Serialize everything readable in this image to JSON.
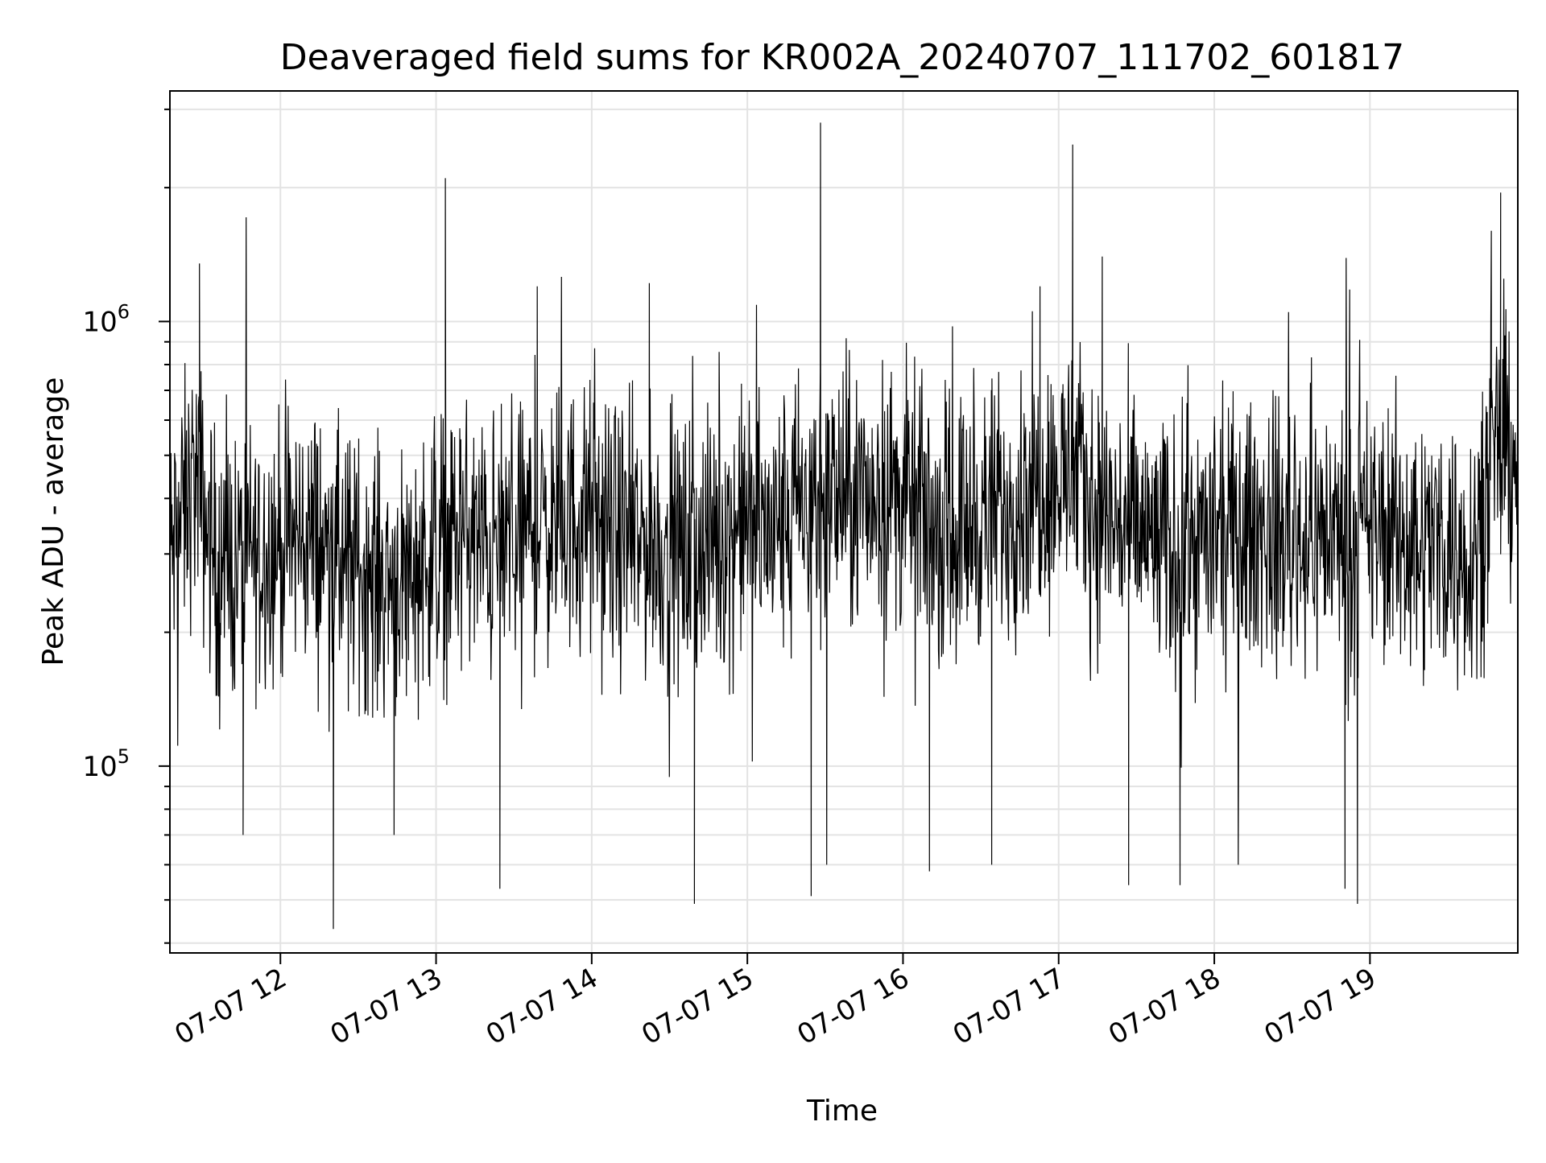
{
  "chart_data": {
    "type": "line",
    "title": "Deaveraged field sums for KR002A_20240707_111702_601817",
    "xlabel": "Time",
    "ylabel": "Peak ADU - average",
    "yscale": "log",
    "grid": "on (major and minor)",
    "x_start": "2024-07-07 11:17",
    "x_end": "2024-07-07 19:57",
    "xlim_hours": [
      11.29,
      19.95
    ],
    "ylim": [
      38000,
      3300000
    ],
    "x_ticks": [
      {
        "hour": 12,
        "label": "07-07 12"
      },
      {
        "hour": 13,
        "label": "07-07 13"
      },
      {
        "hour": 14,
        "label": "07-07 14"
      },
      {
        "hour": 15,
        "label": "07-07 15"
      },
      {
        "hour": 16,
        "label": "07-07 16"
      },
      {
        "hour": 17,
        "label": "07-07 17"
      },
      {
        "hour": 18,
        "label": "07-07 18"
      },
      {
        "hour": 19,
        "label": "07-07 19"
      }
    ],
    "y_ticks": [
      {
        "value": 100000,
        "base": "10",
        "exp": "5"
      },
      {
        "value": 1000000,
        "base": "10",
        "exp": "6"
      }
    ],
    "series": [
      {
        "color": "#000000",
        "time_hours": [
          11.3,
          11.45,
          11.6,
          11.75,
          11.9,
          12.05,
          12.2,
          12.35,
          12.5,
          12.65,
          12.8,
          12.95,
          13.05,
          13.2,
          13.35,
          13.5,
          13.65,
          13.8,
          13.95,
          14.1,
          14.25,
          14.4,
          14.55,
          14.7,
          14.85,
          15.0,
          15.15,
          15.3,
          15.45,
          15.6,
          15.75,
          15.9,
          16.05,
          16.2,
          16.35,
          16.5,
          16.65,
          16.8,
          16.95,
          17.1,
          17.25,
          17.4,
          17.55,
          17.7,
          17.85,
          18.0,
          18.15,
          18.3,
          18.45,
          18.6,
          18.75,
          18.9,
          19.05,
          19.2,
          19.35,
          19.5,
          19.65,
          19.8,
          19.95
        ],
        "values": [
          300000,
          450000,
          270000,
          290000,
          310000,
          320000,
          330000,
          290000,
          280000,
          260000,
          270000,
          300000,
          320000,
          330000,
          300000,
          340000,
          340000,
          350000,
          370000,
          330000,
          320000,
          310000,
          300000,
          310000,
          330000,
          360000,
          330000,
          380000,
          400000,
          410000,
          400000,
          420000,
          390000,
          350000,
          340000,
          360000,
          380000,
          420000,
          440000,
          450000,
          370000,
          350000,
          330000,
          300000,
          320000,
          320000,
          330000,
          340000,
          330000,
          330000,
          340000,
          320000,
          340000,
          330000,
          320000,
          320000,
          300000,
          480000,
          520000
        ],
        "spikes_up": [
          [
            11.48,
            1350000
          ],
          [
            13.06,
            2100000
          ],
          [
            15.47,
            2800000
          ],
          [
            17.09,
            2500000
          ],
          [
            19.84,
            1950000
          ],
          [
            19.78,
            1600000
          ],
          [
            16.88,
            1200000
          ],
          [
            17.28,
            1400000
          ],
          [
            13.65,
            1200000
          ],
          [
            14.37,
            1220000
          ],
          [
            18.87,
            1180000
          ]
        ],
        "spikes_down": [
          [
            12.34,
            43000
          ],
          [
            13.41,
            53000
          ],
          [
            14.66,
            49000
          ],
          [
            15.41,
            51000
          ],
          [
            16.17,
            58000
          ],
          [
            17.45,
            54000
          ],
          [
            17.78,
            54000
          ],
          [
            18.84,
            53000
          ],
          [
            18.92,
            49000
          ],
          [
            15.51,
            60000
          ],
          [
            16.57,
            60000
          ],
          [
            11.76,
            70000
          ],
          [
            12.73,
            70000
          ]
        ]
      }
    ]
  }
}
